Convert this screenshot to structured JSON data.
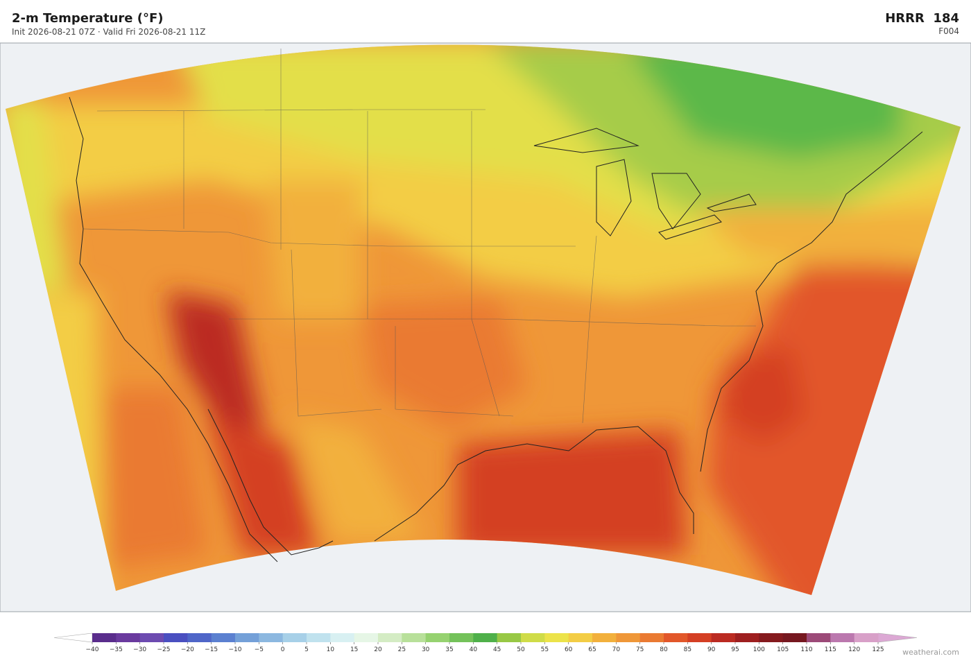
{
  "header": {
    "title": "2-m Temperature  (°F)",
    "subtitle": "Init 2026-08-21 07Z   ·   Valid Fri 2026-08-21 11Z",
    "model": "HRRR  184",
    "forecast_hour": "F004"
  },
  "colorbar": {
    "ticks": [
      {
        "value": -40,
        "label": "−40"
      },
      {
        "value": -35,
        "label": "−35"
      },
      {
        "value": -30,
        "label": "−30"
      },
      {
        "value": -25,
        "label": "−25"
      },
      {
        "value": -20,
        "label": "−20"
      },
      {
        "value": -15,
        "label": "−15"
      },
      {
        "value": -10,
        "label": "−10"
      },
      {
        "value": -5,
        "label": "−5"
      },
      0,
      5,
      10,
      15,
      20,
      25,
      30,
      35,
      40,
      45,
      50,
      55,
      60,
      65,
      70,
      75,
      80,
      85,
      90,
      95,
      100,
      105,
      110,
      115,
      120,
      125
    ],
    "colors": [
      "#5a2d8c",
      "#6a3a9e",
      "#6d4bb0",
      "#4a4fc0",
      "#4f66c8",
      "#5b80d0",
      "#74a0d8",
      "#8cb8e0",
      "#a7d0e8",
      "#c0e2ee",
      "#d8f0f2",
      "#e6f6e6",
      "#d4ecc4",
      "#b8e09a",
      "#96d270",
      "#74c25a",
      "#4fb04a",
      "#98c845",
      "#cfdc48",
      "#ece34a",
      "#f3cd45",
      "#f2b03c",
      "#ef9738",
      "#ea7a32",
      "#e2572a",
      "#d43f24",
      "#bb2b22",
      "#9e1f20",
      "#851a1e",
      "#761820",
      "#9c4a78",
      "#bb78ae",
      "#d8a0c8"
    ],
    "under_color": "#ffffff",
    "over_color": "#dca8d4"
  },
  "watermark": "weatherai.com"
}
